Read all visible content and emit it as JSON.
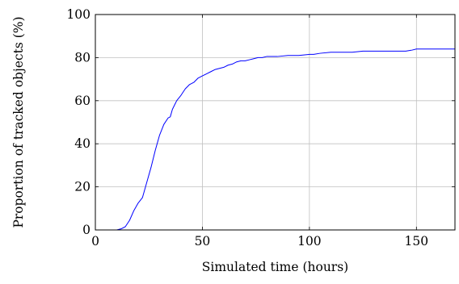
{
  "chart_data": {
    "type": "line",
    "title": "",
    "xlabel": "Simulated time (hours)",
    "ylabel": "Proportion of tracked objects (%)",
    "xlim": [
      0,
      168
    ],
    "ylim": [
      0,
      100
    ],
    "x_ticks": [
      "0",
      "50",
      "100",
      "150"
    ],
    "y_ticks": [
      "0",
      "20",
      "40",
      "60",
      "80",
      "100"
    ],
    "grid": true,
    "legend": "none",
    "series": [
      {
        "color": "#0000ff",
        "x": [
          0,
          10,
          12,
          14,
          16,
          18,
          20,
          22,
          24,
          26,
          28,
          30,
          32,
          34,
          35,
          36,
          37,
          38,
          40,
          42,
          44,
          46,
          48,
          50,
          52,
          54,
          56,
          58,
          60,
          62,
          64,
          66,
          68,
          70,
          72,
          74,
          76,
          78,
          80,
          85,
          90,
          95,
          100,
          102,
          105,
          110,
          115,
          120,
          125,
          130,
          135,
          140,
          145,
          148,
          150,
          155,
          160,
          165,
          168
        ],
        "y": [
          0,
          0,
          0.5,
          1.5,
          4.5,
          9,
          12.5,
          15,
          22,
          29,
          37,
          44,
          49,
          52,
          52.5,
          56,
          58,
          60,
          62.5,
          65.5,
          67.5,
          68.5,
          70.5,
          71.5,
          72.5,
          73.5,
          74.5,
          75,
          75.5,
          76.5,
          77,
          78,
          78.5,
          78.5,
          79,
          79.5,
          80,
          80,
          80.5,
          80.5,
          81,
          81,
          81.5,
          81.5,
          82,
          82.5,
          82.5,
          82.5,
          83,
          83,
          83,
          83,
          83,
          83.5,
          84,
          84,
          84,
          84,
          84
        ]
      }
    ]
  }
}
